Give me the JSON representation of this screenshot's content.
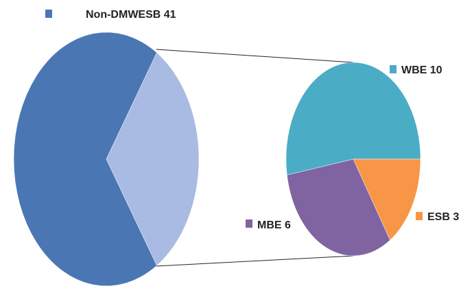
{
  "chart_data": {
    "type": "pie-of-pie",
    "categories": [
      "Non-DMWESB",
      "WBE",
      "MBE",
      "ESB"
    ],
    "values": [
      41,
      10,
      6,
      3
    ],
    "colors": [
      "#4a77b4",
      "#4bacc6",
      "#8064a2",
      "#f79646"
    ],
    "other_color": "#a9bbe2",
    "split_count": 3
  }
}
